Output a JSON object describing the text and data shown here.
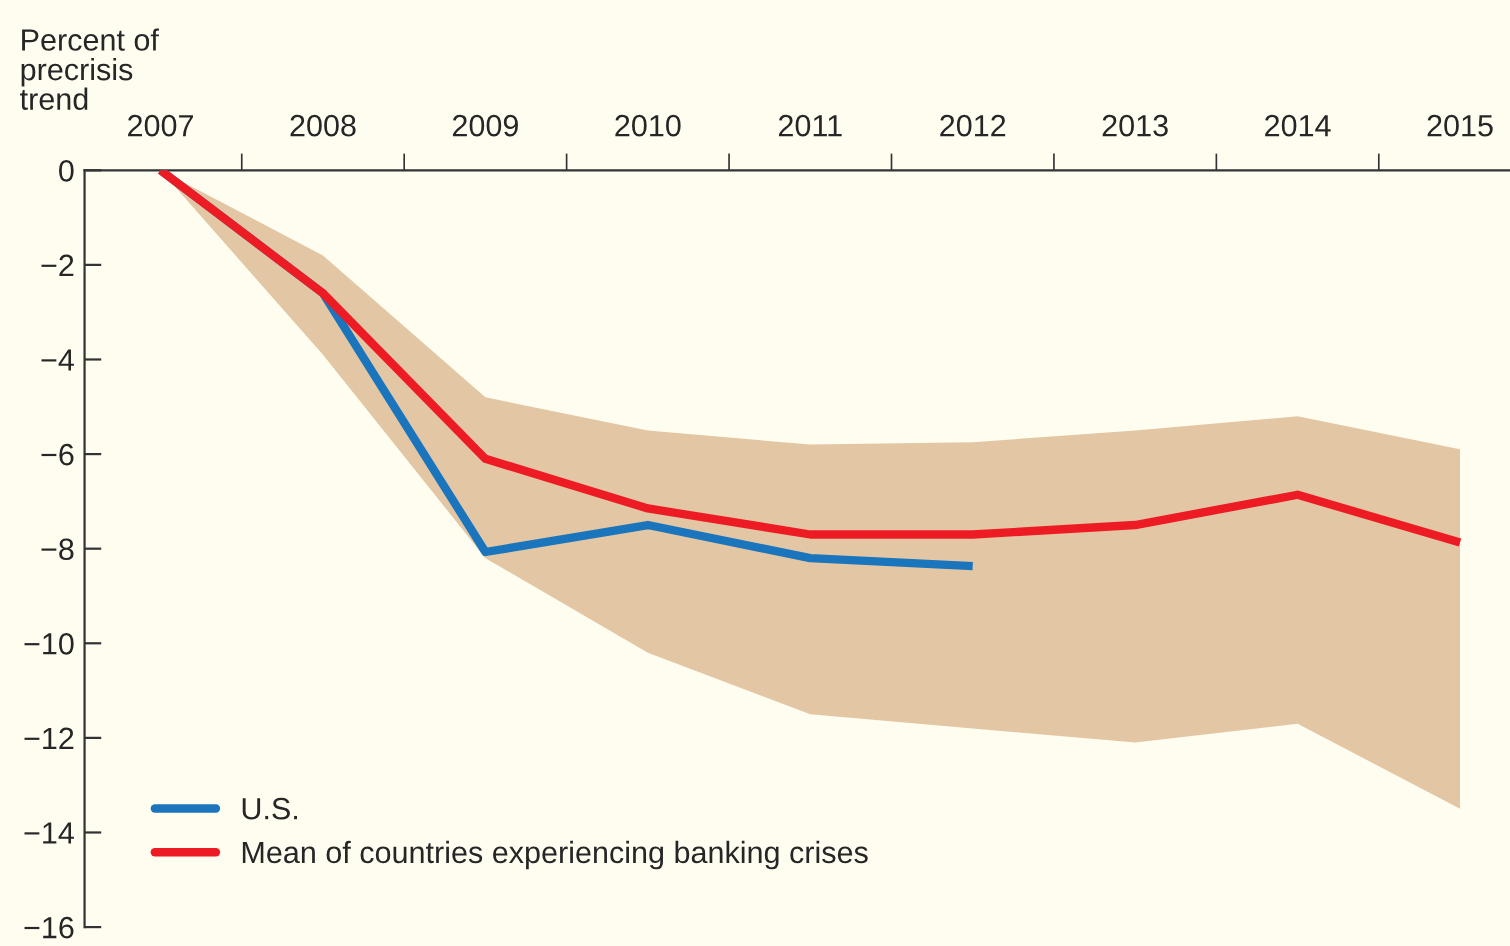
{
  "chart_data": {
    "type": "line",
    "ylabel": "Percent of\nprecrisis\ntrend",
    "categories": [
      "2007",
      "2008",
      "2009",
      "2010",
      "2011",
      "2012",
      "2013",
      "2014",
      "2015"
    ],
    "series": [
      {
        "name": "U.S.",
        "color": "#1a75bc",
        "values": [
          0,
          -2.6,
          -8.07,
          -7.5,
          -8.2,
          -8.37,
          null,
          null,
          null
        ]
      },
      {
        "name": "Mean of countries experiencing banking crises",
        "color": "#ed1c24",
        "values": [
          0,
          -2.6,
          -6.1,
          -7.15,
          -7.7,
          -7.7,
          -7.5,
          -6.86,
          -7.87
        ],
        "lower": [
          0,
          -3.9,
          -8.2,
          -10.2,
          -11.5,
          -11.8,
          -12.1,
          -11.7,
          -13.5
        ],
        "upper": [
          0,
          -1.8,
          -4.8,
          -5.5,
          -5.8,
          -5.75,
          -5.5,
          -5.2,
          -5.9
        ]
      }
    ],
    "ylim": [
      -16,
      0
    ],
    "yticks": [
      0,
      {
        "value": -2,
        "label": "−2"
      },
      {
        "value": -4,
        "label": "−4"
      },
      {
        "value": -6,
        "label": "−6"
      },
      {
        "value": -8,
        "label": "−8"
      },
      {
        "value": -10,
        "label": "−10"
      },
      {
        "value": -12,
        "label": "−12"
      },
      {
        "value": -14,
        "label": "−14"
      },
      {
        "value": -16,
        "label": "−16"
      }
    ],
    "grid": false,
    "legend": "bottom left",
    "marker": "none",
    "line_style": "solid"
  }
}
